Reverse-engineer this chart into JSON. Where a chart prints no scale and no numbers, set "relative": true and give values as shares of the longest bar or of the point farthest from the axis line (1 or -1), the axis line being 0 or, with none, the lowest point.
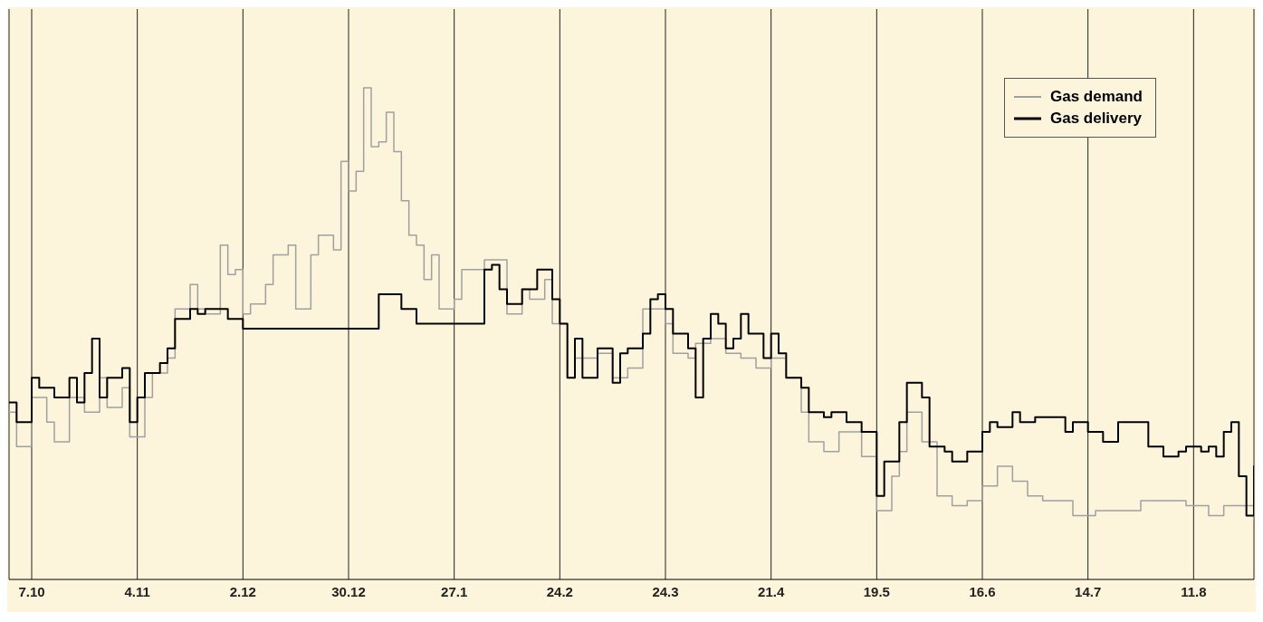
{
  "chart_data": {
    "type": "step",
    "relative": true,
    "grid": "x",
    "legend": "top right",
    "categories": [
      null,
      null,
      null,
      "7.10",
      null,
      null,
      null,
      null,
      null,
      null,
      null,
      null,
      null,
      null,
      null,
      null,
      null,
      "4.11",
      null,
      null,
      null,
      null,
      null,
      null,
      null,
      null,
      null,
      null,
      null,
      null,
      null,
      "2.12",
      null,
      null,
      null,
      null,
      null,
      null,
      null,
      null,
      null,
      null,
      null,
      null,
      null,
      "30.12",
      null,
      null,
      null,
      null,
      null,
      null,
      null,
      null,
      null,
      null,
      null,
      null,
      null,
      "27.1",
      null,
      null,
      null,
      null,
      null,
      null,
      null,
      null,
      null,
      null,
      null,
      null,
      null,
      "24.2",
      null,
      null,
      null,
      null,
      null,
      null,
      null,
      null,
      null,
      null,
      null,
      null,
      null,
      "24.3",
      null,
      null,
      null,
      null,
      null,
      null,
      null,
      null,
      null,
      null,
      null,
      null,
      null,
      "21.4",
      null,
      null,
      null,
      null,
      null,
      null,
      null,
      null,
      null,
      null,
      null,
      null,
      null,
      "19.5",
      null,
      null,
      null,
      null,
      null,
      null,
      null,
      null,
      null,
      null,
      null,
      null,
      null,
      "16.6",
      null,
      null,
      null,
      null,
      null,
      null,
      null,
      null,
      null,
      null,
      null,
      null,
      null,
      "14.7",
      null,
      null,
      null,
      null,
      null,
      null,
      null,
      null,
      null,
      null,
      null,
      null,
      null,
      "11.8",
      null,
      null,
      null,
      null,
      null,
      null,
      null,
      null
    ],
    "series": [
      {
        "name": "Gas demand",
        "color": "#a0a0a0",
        "values": [
          0.34,
          0.27,
          0.27,
          0.37,
          0.37,
          0.32,
          0.28,
          0.28,
          0.37,
          0.37,
          0.34,
          0.34,
          0.41,
          0.35,
          0.35,
          0.39,
          0.29,
          0.29,
          0.37,
          0.42,
          0.42,
          0.45,
          0.55,
          0.55,
          0.6,
          0.55,
          0.54,
          0.54,
          0.68,
          0.62,
          0.63,
          0.54,
          0.56,
          0.56,
          0.6,
          0.66,
          0.66,
          0.68,
          0.55,
          0.55,
          0.66,
          0.7,
          0.7,
          0.67,
          0.85,
          0.79,
          0.83,
          1.0,
          0.88,
          0.89,
          0.95,
          0.87,
          0.77,
          0.7,
          0.68,
          0.61,
          0.66,
          0.55,
          0.55,
          0.57,
          0.63,
          0.63,
          0.63,
          0.65,
          0.65,
          0.65,
          0.54,
          0.54,
          0.59,
          0.57,
          0.57,
          0.61,
          0.52,
          0.52,
          0.41,
          0.45,
          0.45,
          0.45,
          0.46,
          0.46,
          0.41,
          0.41,
          0.43,
          0.43,
          0.55,
          0.55,
          0.55,
          0.52,
          0.46,
          0.46,
          0.45,
          0.48,
          0.48,
          0.49,
          0.49,
          0.46,
          0.46,
          0.45,
          0.45,
          0.43,
          0.43,
          0.45,
          0.45,
          0.41,
          0.41,
          0.34,
          0.28,
          0.28,
          0.26,
          0.26,
          0.3,
          0.3,
          0.3,
          0.25,
          0.25,
          0.14,
          0.14,
          0.21,
          0.26,
          0.34,
          0.34,
          0.28,
          0.28,
          0.17,
          0.17,
          0.15,
          0.15,
          0.16,
          0.16,
          0.19,
          0.19,
          0.23,
          0.23,
          0.2,
          0.2,
          0.17,
          0.17,
          0.16,
          0.16,
          0.16,
          0.16,
          0.13,
          0.13,
          0.13,
          0.14,
          0.14,
          0.14,
          0.14,
          0.14,
          0.14,
          0.16,
          0.16,
          0.16,
          0.16,
          0.16,
          0.16,
          0.15,
          0.15,
          0.15,
          0.13,
          0.13,
          0.15,
          0.15,
          0.15,
          0.15,
          0.12
        ]
      },
      {
        "name": "Gas delivery",
        "color": "#000000",
        "values": [
          0.36,
          0.32,
          0.32,
          0.41,
          0.39,
          0.39,
          0.37,
          0.37,
          0.41,
          0.36,
          0.42,
          0.49,
          0.37,
          0.41,
          0.41,
          0.43,
          0.32,
          0.37,
          0.42,
          0.42,
          0.44,
          0.47,
          0.53,
          0.53,
          0.55,
          0.54,
          0.55,
          0.55,
          0.55,
          0.53,
          0.53,
          0.51,
          0.51,
          0.51,
          0.51,
          0.51,
          0.51,
          0.51,
          0.51,
          0.51,
          0.51,
          0.51,
          0.51,
          0.51,
          0.51,
          0.51,
          0.51,
          0.51,
          0.51,
          0.58,
          0.58,
          0.58,
          0.55,
          0.55,
          0.52,
          0.52,
          0.52,
          0.52,
          0.52,
          0.52,
          0.52,
          0.52,
          0.52,
          0.63,
          0.64,
          0.59,
          0.56,
          0.56,
          0.59,
          0.59,
          0.63,
          0.63,
          0.57,
          0.52,
          0.41,
          0.49,
          0.41,
          0.41,
          0.47,
          0.47,
          0.4,
          0.46,
          0.47,
          0.47,
          0.5,
          0.57,
          0.58,
          0.55,
          0.5,
          0.5,
          0.47,
          0.37,
          0.49,
          0.54,
          0.52,
          0.47,
          0.49,
          0.54,
          0.5,
          0.5,
          0.45,
          0.5,
          0.46,
          0.41,
          0.41,
          0.39,
          0.34,
          0.34,
          0.33,
          0.34,
          0.34,
          0.32,
          0.32,
          0.3,
          0.3,
          0.17,
          0.24,
          0.24,
          0.32,
          0.4,
          0.4,
          0.37,
          0.27,
          0.27,
          0.26,
          0.24,
          0.24,
          0.26,
          0.26,
          0.3,
          0.32,
          0.31,
          0.31,
          0.34,
          0.32,
          0.32,
          0.33,
          0.33,
          0.33,
          0.33,
          0.3,
          0.32,
          0.32,
          0.3,
          0.3,
          0.28,
          0.28,
          0.32,
          0.32,
          0.32,
          0.32,
          0.27,
          0.27,
          0.25,
          0.25,
          0.26,
          0.27,
          0.27,
          0.26,
          0.27,
          0.25,
          0.3,
          0.32,
          0.21,
          0.13,
          0.23
        ]
      }
    ]
  }
}
